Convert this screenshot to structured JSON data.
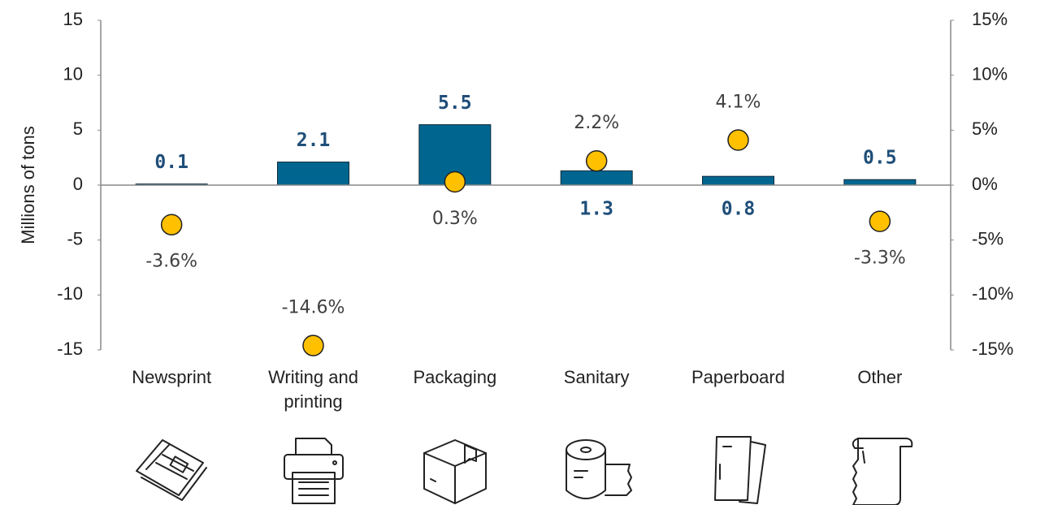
{
  "chart_data": {
    "type": "bar",
    "y_label": "Millions of tons",
    "categories": [
      "Newsprint",
      "Writing and printing",
      "Packaging",
      "Sanitary",
      "Paperboard",
      "Other"
    ],
    "series": [
      {
        "type": "bar",
        "color": "#006690",
        "values": [
          0.1,
          2.1,
          5.5,
          1.3,
          0.8,
          0.5
        ]
      },
      {
        "type": "scatter",
        "axis": "y2",
        "color": "#ffc000",
        "values": [
          -3.6,
          -14.6,
          0.3,
          2.2,
          4.1,
          -3.3
        ],
        "value_labels": [
          "-3.6%",
          "-14.6%",
          "0.3%",
          "2.2%",
          "4.1%",
          "-3.3%"
        ]
      }
    ],
    "ylim": [
      -15,
      15
    ],
    "yticks": [
      -15,
      -10,
      -5,
      0,
      5,
      10,
      15
    ],
    "y2lim": [
      -15,
      15
    ],
    "y2ticks": [
      {
        "value": -15,
        "label": "-15%"
      },
      {
        "value": -10,
        "label": "-10%"
      },
      {
        "value": -5,
        "label": "-5%"
      },
      {
        "value": 0,
        "label": "0%"
      },
      {
        "value": 5,
        "label": "5%"
      },
      {
        "value": 10,
        "label": "10%"
      },
      {
        "value": 15,
        "label": "15%"
      }
    ]
  }
}
